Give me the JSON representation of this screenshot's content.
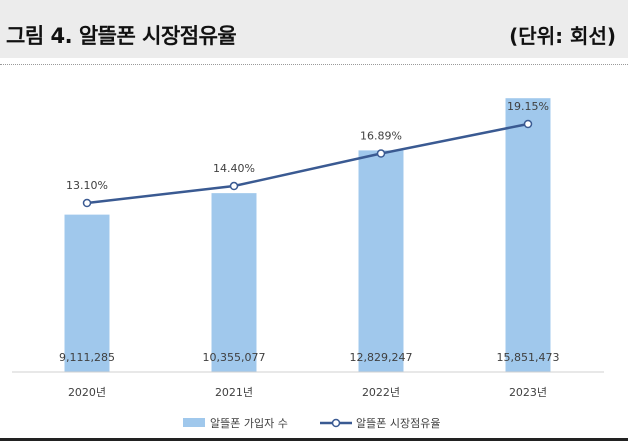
{
  "header": {
    "title": "그림 4. 알뜰폰 시장점유율",
    "unit": "(단위: 회선)"
  },
  "colors": {
    "bar": "#a0c8ec",
    "line": "#3a5a92",
    "marker_fill": "#ffffff",
    "header_bg": "#ececec",
    "text": "#404040"
  },
  "chart_data": {
    "type": "bar",
    "categories": [
      "2020년",
      "2021년",
      "2022년",
      "2023년"
    ],
    "series": [
      {
        "name": "알뜰폰 가입자 수",
        "type": "bar",
        "values": [
          9111285,
          10355077,
          12829247,
          15851473
        ],
        "labels": [
          "9,111,285",
          "10,355,077",
          "12,829,247",
          "15,851,473"
        ]
      },
      {
        "name": "알뜰폰 시장점유율",
        "type": "line",
        "values": [
          13.1,
          14.4,
          16.89,
          19.15
        ],
        "labels": [
          "13.10%",
          "14.40%",
          "16.89%",
          "19.15%"
        ]
      }
    ],
    "bar_ylim": [
      0,
      16500000
    ],
    "line_ylim": [
      0,
      20.5
    ],
    "grid": false,
    "legend": "bottom"
  }
}
